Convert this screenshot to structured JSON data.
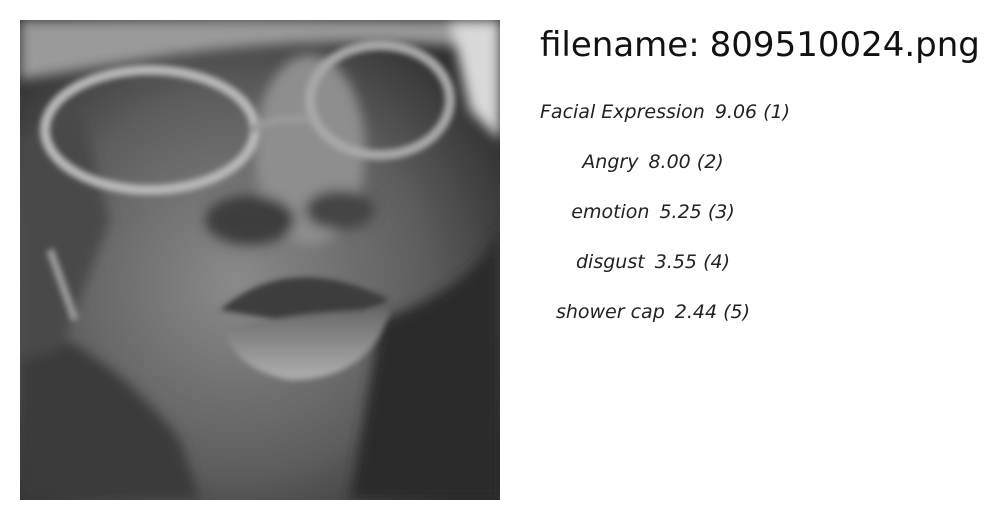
{
  "image": {
    "description_icon": "grayscale-face-photo-icon"
  },
  "filename": {
    "label": "filename:",
    "value": "809510024.png"
  },
  "tags": [
    {
      "label": "Facial Expression",
      "score": "9.06",
      "rank": "(1)"
    },
    {
      "label": "Angry",
      "score": "8.00",
      "rank": "(2)"
    },
    {
      "label": "emotion",
      "score": "5.25",
      "rank": "(3)"
    },
    {
      "label": "disgust",
      "score": "3.55",
      "rank": "(4)"
    },
    {
      "label": "shower cap",
      "score": "2.44",
      "rank": "(5)"
    }
  ],
  "colors": {
    "background": "#ffffff",
    "text": "#111111"
  }
}
